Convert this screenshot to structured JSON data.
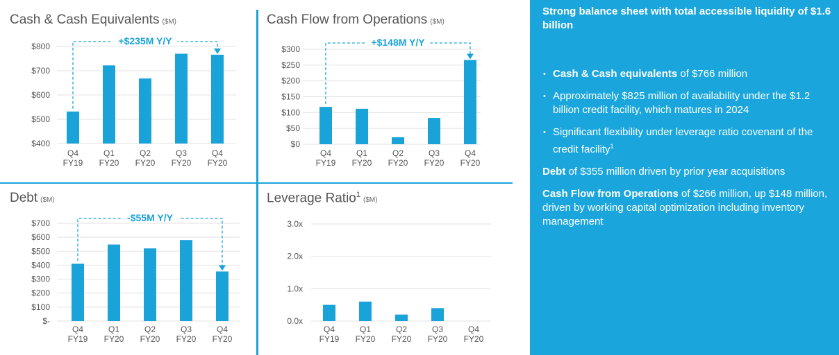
{
  "colors": {
    "accent": "#1aa6dc",
    "bar": "#1aa3d9",
    "text": "#555555",
    "sidebar_bg": "#1aa6dc"
  },
  "panels": {
    "cash": {
      "title": "Cash & Cash Equivalents",
      "unit": "($M)",
      "annotation": "+$235M Y/Y"
    },
    "cfo": {
      "title": "Cash Flow from Operations",
      "unit": "($M)",
      "annotation": "+$148M Y/Y"
    },
    "debt": {
      "title": "Debt",
      "unit": "($M)",
      "annotation": "-$55M Y/Y"
    },
    "leverage": {
      "title": "Leverage Ratio",
      "footnote": "1",
      "unit": "($M)",
      "annotation": ""
    }
  },
  "chart_data": [
    {
      "id": "cash",
      "type": "bar",
      "title": "Cash & Cash Equivalents",
      "categories": [
        "Q4\nFY19",
        "Q1\nFY20",
        "Q2\nFY20",
        "Q3\nFY20",
        "Q4\nFY20"
      ],
      "values": [
        532,
        722,
        668,
        770,
        766
      ],
      "ylim": [
        400,
        800
      ],
      "yticks": [
        400,
        500,
        600,
        700,
        800
      ],
      "ytick_labels": [
        "$400",
        "$500",
        "$600",
        "$700",
        "$800"
      ],
      "annotation": "+$235M Y/Y",
      "annotation_from": 0,
      "annotation_to": 4,
      "grid": true
    },
    {
      "id": "cfo",
      "type": "bar",
      "title": "Cash Flow from Operations",
      "categories": [
        "Q4\nFY19",
        "Q1\nFY20",
        "Q2\nFY20",
        "Q3\nFY20",
        "Q4\nFY20"
      ],
      "values": [
        118,
        112,
        22,
        83,
        266
      ],
      "ylim": [
        0,
        300
      ],
      "yticks": [
        0,
        50,
        100,
        150,
        200,
        250,
        300
      ],
      "ytick_labels": [
        "$0",
        "$50",
        "$100",
        "$150",
        "$200",
        "$250",
        "$300"
      ],
      "annotation": "+$148M Y/Y",
      "annotation_from": 0,
      "annotation_to": 4,
      "grid": true
    },
    {
      "id": "debt",
      "type": "bar",
      "title": "Debt",
      "categories": [
        "Q4\nFY19",
        "Q1\nFY20",
        "Q2\nFY20",
        "Q3\nFY20",
        "Q4\nFY20"
      ],
      "values": [
        410,
        548,
        520,
        580,
        355
      ],
      "ylim": [
        0,
        700
      ],
      "yticks": [
        0,
        100,
        200,
        300,
        400,
        500,
        600,
        700
      ],
      "ytick_labels": [
        "$-",
        "$100",
        "$200",
        "$300",
        "$400",
        "$500",
        "$600",
        "$700"
      ],
      "annotation": "-$55M Y/Y",
      "annotation_from": 0,
      "annotation_to": 4,
      "grid": true
    },
    {
      "id": "leverage",
      "type": "bar",
      "title": "Leverage Ratio",
      "categories": [
        "Q4\nFY19",
        "Q1\nFY20",
        "Q2\nFY20",
        "Q3\nFY20",
        "Q4\nFY20"
      ],
      "values": [
        0.5,
        0.6,
        0.2,
        0.4,
        0
      ],
      "ylim": [
        0,
        3
      ],
      "yticks": [
        0,
        1,
        2,
        3
      ],
      "ytick_labels": [
        "0.0x",
        "1.0x",
        "2.0x",
        "3.0x"
      ],
      "grid": true
    }
  ],
  "sidebar": {
    "heading": "Strong balance sheet with total accessible liquidity of $1.6 billion",
    "bullets": [
      {
        "bold": "Cash & Cash equivalents",
        "text": " of $766 million",
        "sup": ""
      },
      {
        "bold": "",
        "text": "Approximately $825 million of availability under the $1.2 billion credit facility, which matures in 2024",
        "sup": ""
      },
      {
        "bold": "",
        "text": "Significant flexibility under leverage ratio covenant of the credit facility",
        "sup": "1"
      }
    ],
    "paragraphs": [
      {
        "bold": "Debt",
        "text": " of $355 million driven by prior year acquisitions"
      },
      {
        "bold": "Cash Flow from Operations",
        "text": " of $266 million, up $148 million, driven by working capital optimization including inventory management"
      }
    ]
  }
}
